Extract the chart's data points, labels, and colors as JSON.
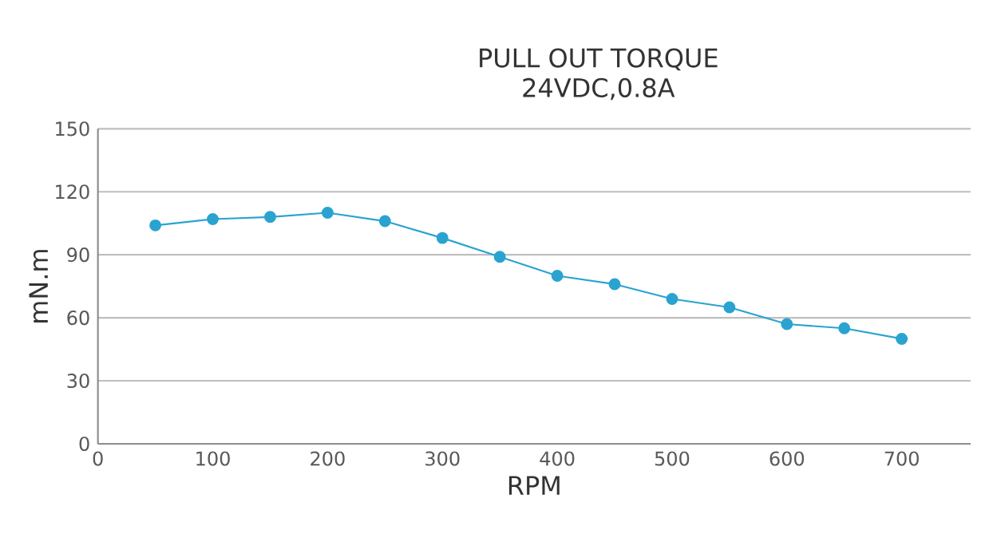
{
  "chart_data": {
    "type": "line",
    "title": "PULL OUT TORQUE",
    "subtitle": "24VDC,0.8A",
    "xlabel": "RPM",
    "ylabel": "mN.m",
    "x": [
      50,
      100,
      150,
      200,
      250,
      300,
      350,
      400,
      450,
      500,
      550,
      600,
      650,
      700
    ],
    "series": [
      {
        "color": "#2aa3d0",
        "values": [
          104,
          107,
          108,
          110,
          106,
          98,
          89,
          80,
          76,
          69,
          65,
          57,
          55,
          50
        ]
      }
    ],
    "xlim": [
      0,
      760
    ],
    "xticks": [
      0,
      100,
      200,
      300,
      400,
      500,
      600,
      700
    ],
    "ylim": [
      0,
      150
    ],
    "yticks": [
      0,
      30,
      60,
      90,
      120,
      150
    ],
    "grid": "y",
    "marker": "circle",
    "line_style": "solid"
  }
}
